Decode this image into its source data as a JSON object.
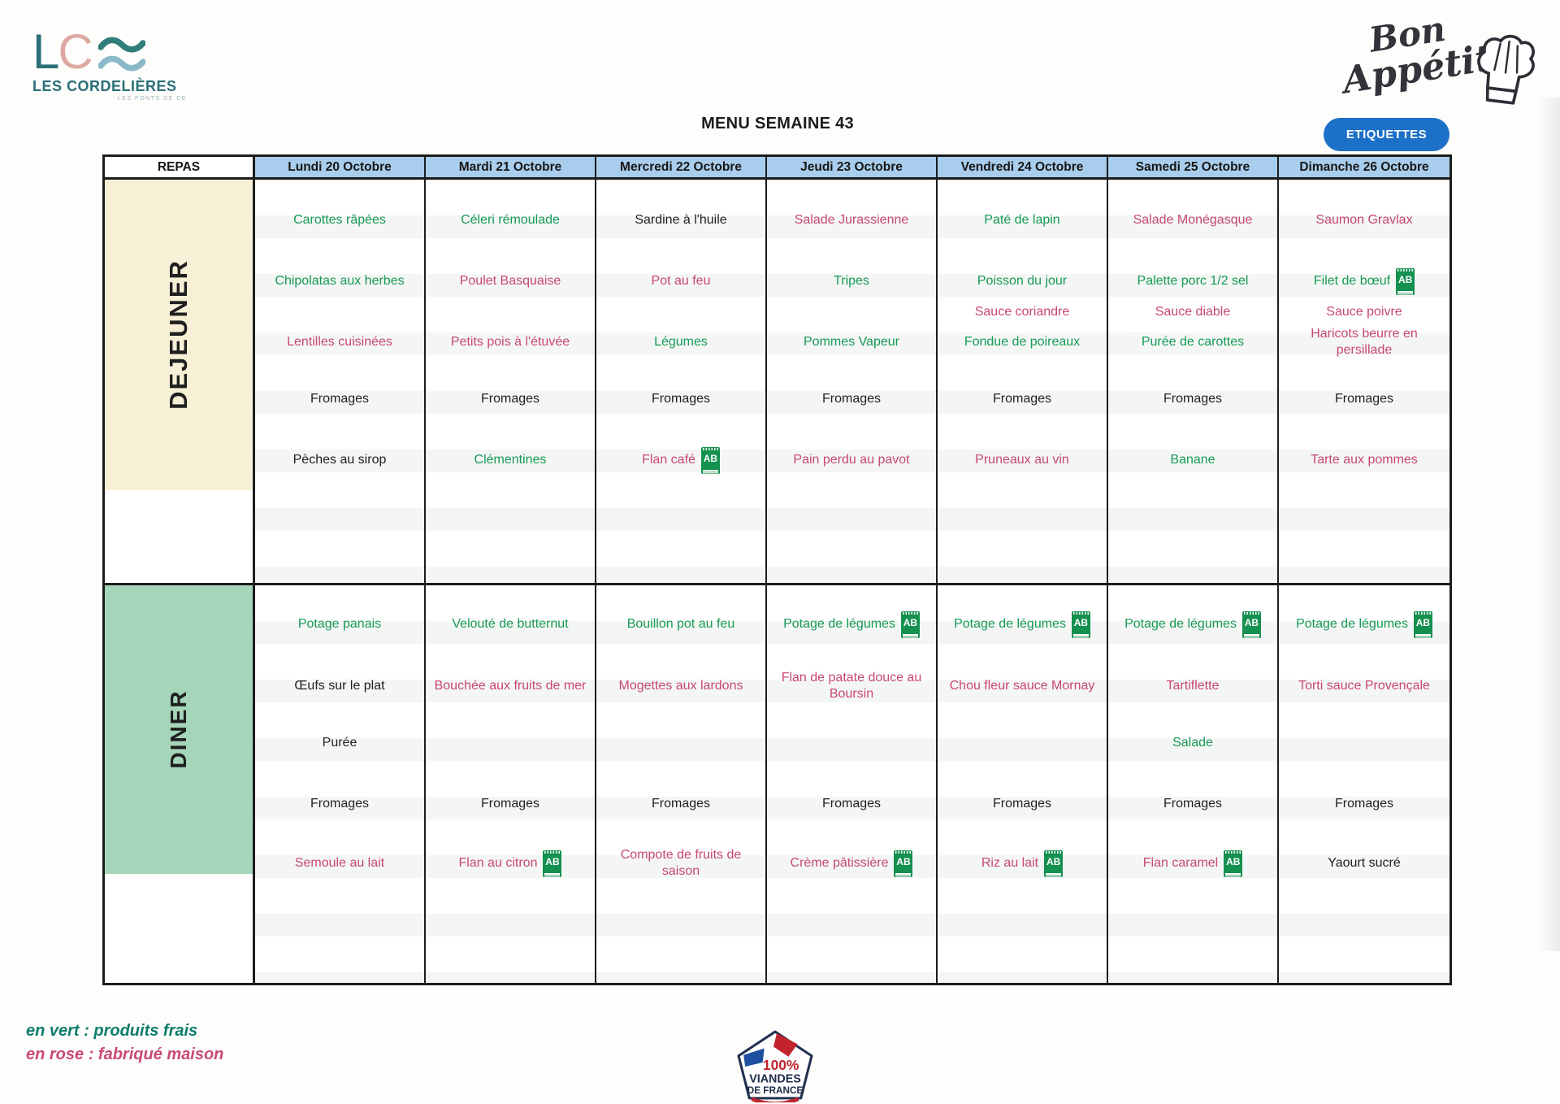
{
  "logo": {
    "letter1": "L",
    "letter2": "C",
    "name": "LES CORDELIÈRES",
    "tagline": "LES PONTS DE CÉ"
  },
  "title": "MENU SEMAINE 43",
  "etiquettes_button": "ETIQUETTES",
  "bon_appetit": {
    "line1": "Bon",
    "line2": "Appétit"
  },
  "ab_label": "AB",
  "colors": {
    "item_green": "#169a56",
    "item_rose": "#c7486e",
    "item_black": "#1f1f1f",
    "header_blue": "#a9cdec",
    "dejeuner_cream": "#f7f0d6",
    "diner_green": "#a5d6ba",
    "button_blue": "#1d70c8",
    "legend_green": "#0e7c6b",
    "legend_rose": "#c94a72",
    "ab_green": "#14904f",
    "viandes_red": "#c2232d",
    "viandes_blue": "#1d4f9e",
    "viandes_navy": "#1d2c49"
  },
  "table": {
    "repas_header": "REPAS",
    "days": [
      "Lundi 20 Octobre",
      "Mardi 21 Octobre",
      "Mercredi 22 Octobre",
      "Jeudi 23 Octobre",
      "Vendredi 24 Octobre",
      "Samedi 25 Octobre",
      "Dimanche 26 Octobre"
    ],
    "sections": [
      {
        "label": "DEJEUNER",
        "slots": [
          "entree",
          "plat",
          "sauce",
          "garniture",
          "fromage",
          "dessert"
        ],
        "columns": [
          [
            {
              "text": "Carottes râpées",
              "color": "green"
            },
            {
              "text": "Chipolatas aux herbes",
              "color": "green"
            },
            null,
            {
              "text": "Lentilles cuisinées",
              "color": "rose"
            },
            {
              "text": "Fromages",
              "color": "black"
            },
            {
              "text": "Pèches au sirop",
              "color": "black"
            }
          ],
          [
            {
              "text": "Céleri rémoulade",
              "color": "green"
            },
            {
              "text": "Poulet Basquaise",
              "color": "rose"
            },
            null,
            {
              "text": "Petits pois à l'étuvée",
              "color": "rose"
            },
            {
              "text": "Fromages",
              "color": "black"
            },
            {
              "text": "Clémentines",
              "color": "green"
            }
          ],
          [
            {
              "text": "Sardine à l'huile",
              "color": "black"
            },
            {
              "text": "Pot au feu",
              "color": "rose"
            },
            null,
            {
              "text": "Légumes",
              "color": "green"
            },
            {
              "text": "Fromages",
              "color": "black"
            },
            {
              "text": "Flan café",
              "color": "rose",
              "ab": true
            }
          ],
          [
            {
              "text": "Salade Jurassienne",
              "color": "rose"
            },
            {
              "text": "Tripes",
              "color": "green"
            },
            null,
            {
              "text": "Pommes Vapeur",
              "color": "green"
            },
            {
              "text": "Fromages",
              "color": "black"
            },
            {
              "text": "Pain perdu au pavot",
              "color": "rose"
            }
          ],
          [
            {
              "text": "Paté de lapin",
              "color": "green"
            },
            {
              "text": "Poisson du jour",
              "color": "green"
            },
            {
              "text": "Sauce coriandre",
              "color": "rose"
            },
            {
              "text": "Fondue de poireaux",
              "color": "green"
            },
            {
              "text": "Fromages",
              "color": "black"
            },
            {
              "text": "Pruneaux au vin",
              "color": "rose"
            }
          ],
          [
            {
              "text": "Salade Monégasque",
              "color": "rose"
            },
            {
              "text": "Palette porc 1/2 sel",
              "color": "green"
            },
            {
              "text": "Sauce diable",
              "color": "rose"
            },
            {
              "text": "Purée de carottes",
              "color": "green"
            },
            {
              "text": "Fromages",
              "color": "black"
            },
            {
              "text": "Banane",
              "color": "green"
            }
          ],
          [
            {
              "text": "Saumon Gravlax",
              "color": "rose"
            },
            {
              "text": "Filet de bœuf",
              "color": "green",
              "ab": true
            },
            {
              "text": "Sauce poivre",
              "color": "rose"
            },
            {
              "text": "Haricots beurre en persillade",
              "color": "rose"
            },
            {
              "text": "Fromages",
              "color": "black"
            },
            {
              "text": "Tarte aux pommes",
              "color": "rose"
            }
          ]
        ]
      },
      {
        "label": "DINER",
        "slots": [
          "potage",
          "plat",
          "garniture",
          "fromage",
          "dessert"
        ],
        "columns": [
          [
            {
              "text": "Potage panais",
              "color": "green"
            },
            {
              "text": "Œufs sur le plat",
              "color": "black"
            },
            {
              "text": "Purée",
              "color": "black"
            },
            {
              "text": "Fromages",
              "color": "black"
            },
            {
              "text": "Semoule au lait",
              "color": "rose"
            }
          ],
          [
            {
              "text": "Velouté de butternut",
              "color": "green"
            },
            {
              "text": "Bouchée aux fruits de mer",
              "color": "rose"
            },
            null,
            {
              "text": "Fromages",
              "color": "black"
            },
            {
              "text": "Flan au citron",
              "color": "rose",
              "ab": true
            }
          ],
          [
            {
              "text": "Bouillon pot au feu",
              "color": "green"
            },
            {
              "text": "Mogettes aux lardons",
              "color": "rose"
            },
            null,
            {
              "text": "Fromages",
              "color": "black"
            },
            {
              "text": "Compote de fruits de saison",
              "color": "rose"
            }
          ],
          [
            {
              "text": "Potage de légumes",
              "color": "green",
              "ab": true
            },
            {
              "text": "Flan de patate douce au Boursin",
              "color": "rose"
            },
            null,
            {
              "text": "Fromages",
              "color": "black"
            },
            {
              "text": "Crème pâtissière",
              "color": "rose",
              "ab": true
            }
          ],
          [
            {
              "text": "Potage de légumes",
              "color": "green",
              "ab": true
            },
            {
              "text": "Chou fleur sauce Mornay",
              "color": "rose"
            },
            null,
            {
              "text": "Fromages",
              "color": "black"
            },
            {
              "text": "Riz au lait",
              "color": "rose",
              "ab": true
            }
          ],
          [
            {
              "text": "Potage de légumes",
              "color": "green",
              "ab": true
            },
            {
              "text": "Tartiflette",
              "color": "rose"
            },
            {
              "text": "Salade",
              "color": "green"
            },
            {
              "text": "Fromages",
              "color": "black"
            },
            {
              "text": "Flan caramel",
              "color": "rose",
              "ab": true
            }
          ],
          [
            {
              "text": "Potage de légumes",
              "color": "green",
              "ab": true
            },
            {
              "text": "Torti sauce Provençale",
              "color": "rose"
            },
            null,
            {
              "text": "Fromages",
              "color": "black"
            },
            {
              "text": "Yaourt sucré",
              "color": "black"
            }
          ]
        ]
      }
    ]
  },
  "legend": [
    {
      "text": "en vert : produits frais",
      "color": "green"
    },
    {
      "text": "en rose : fabriqué maison",
      "color": "rose"
    }
  ],
  "viandes_logo": {
    "percent": "100%",
    "line1": "VIANDES",
    "line2": "DE FRANCE"
  }
}
